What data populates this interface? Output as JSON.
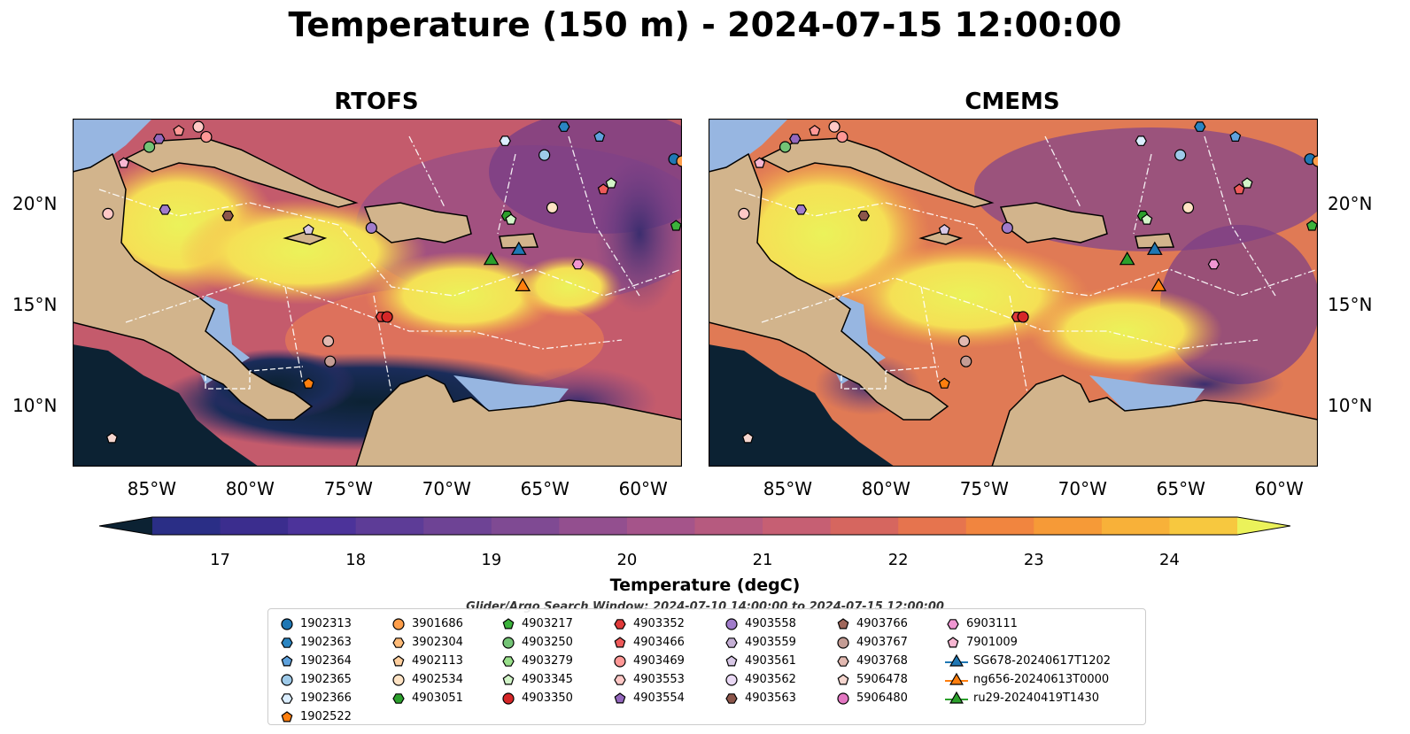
{
  "title": "Temperature (150 m) - 2024-07-15 12:00:00",
  "panels": [
    {
      "title": "RTOFS"
    },
    {
      "title": "CMEMS"
    }
  ],
  "map_axes": {
    "lon_labels": [
      "85°W",
      "80°W",
      "75°W",
      "70°W",
      "65°W",
      "60°W"
    ],
    "lat_labels": [
      "20°N",
      "15°N",
      "10°N"
    ],
    "lon_range": [
      -89,
      -58
    ],
    "lat_range": [
      7,
      24.2
    ]
  },
  "colorbar": {
    "label": "Temperature (degC)",
    "ticks": [
      "17",
      "18",
      "19",
      "20",
      "21",
      "22",
      "23",
      "24"
    ],
    "range": [
      16.5,
      24.5
    ],
    "extend": "both"
  },
  "colors": {
    "land": "#d2b48c",
    "shelf": "#97b6e1",
    "cold": "#0c2233",
    "warm": "#ebf25a",
    "outline": "#000000"
  },
  "search_window": "Glider/Argo Search Window: 2024-07-10 14:00:00 to 2024-07-15 12:00:00",
  "legend": {
    "columns": [
      [
        {
          "label": "1902313",
          "shape": "circle",
          "color": "#1f77b4"
        },
        {
          "label": "1902363",
          "shape": "hexagon",
          "color": "#2a85c2"
        },
        {
          "label": "1902364",
          "shape": "pentagon",
          "color": "#5fa2dd"
        },
        {
          "label": "1902365",
          "shape": "circle",
          "color": "#9ecae9"
        },
        {
          "label": "1902366",
          "shape": "hexagon",
          "color": "#dbeeff"
        },
        {
          "label": "1902522",
          "shape": "pentagon",
          "color": "#ff7f0e"
        }
      ],
      [
        {
          "label": "3901686",
          "shape": "circle",
          "color": "#ff9e4a"
        },
        {
          "label": "3902304",
          "shape": "hexagon",
          "color": "#ffbb78"
        },
        {
          "label": "4902113",
          "shape": "pentagon",
          "color": "#ffcf9e"
        },
        {
          "label": "4902534",
          "shape": "circle",
          "color": "#ffe3c4"
        },
        {
          "label": "4903051",
          "shape": "hexagon",
          "color": "#2ca02c"
        }
      ],
      [
        {
          "label": "4903217",
          "shape": "pentagon",
          "color": "#3cb33c"
        },
        {
          "label": "4903250",
          "shape": "circle",
          "color": "#74c476"
        },
        {
          "label": "4903279",
          "shape": "hexagon",
          "color": "#98df8a"
        },
        {
          "label": "4903345",
          "shape": "pentagon",
          "color": "#d2f5c8"
        },
        {
          "label": "4903350",
          "shape": "circle",
          "color": "#d62728"
        }
      ],
      [
        {
          "label": "4903352",
          "shape": "hexagon",
          "color": "#e03a3a"
        },
        {
          "label": "4903466",
          "shape": "pentagon",
          "color": "#ef5a5a"
        },
        {
          "label": "4903469",
          "shape": "circle",
          "color": "#ff9896"
        },
        {
          "label": "4903553",
          "shape": "hexagon",
          "color": "#ffc8c6"
        },
        {
          "label": "4903554",
          "shape": "pentagon",
          "color": "#9467bd"
        }
      ],
      [
        {
          "label": "4903558",
          "shape": "circle",
          "color": "#a17ccb"
        },
        {
          "label": "4903559",
          "shape": "hexagon",
          "color": "#c5b0d5"
        },
        {
          "label": "4903561",
          "shape": "pentagon",
          "color": "#d8c8e6"
        },
        {
          "label": "4903562",
          "shape": "circle",
          "color": "#ead9f5"
        },
        {
          "label": "4903563",
          "shape": "hexagon",
          "color": "#8c564b"
        }
      ],
      [
        {
          "label": "4903766",
          "shape": "pentagon",
          "color": "#a0675b"
        },
        {
          "label": "4903767",
          "shape": "circle",
          "color": "#c49c94"
        },
        {
          "label": "4903768",
          "shape": "hexagon",
          "color": "#e2b9b1"
        },
        {
          "label": "5906478",
          "shape": "pentagon",
          "color": "#f5d6cf"
        },
        {
          "label": "5906480",
          "shape": "circle",
          "color": "#e377c2"
        }
      ],
      [
        {
          "label": "6903111",
          "shape": "hexagon",
          "color": "#f096d2"
        },
        {
          "label": "7901009",
          "shape": "pentagon",
          "color": "#f7b6d2"
        },
        {
          "label": "SG678-20240617T1202",
          "shape": "triangle-line",
          "color": "#1f77b4"
        },
        {
          "label": "ng656-20240613T0000",
          "shape": "triangle-line",
          "color": "#ff7f0e"
        },
        {
          "label": "ru29-20240419T1430",
          "shape": "triangle-line",
          "color": "#2ca02c"
        }
      ]
    ]
  },
  "markers": [
    {
      "lon": -84.6,
      "lat": 23.2,
      "shape": "hexagon",
      "color": "#9467bd"
    },
    {
      "lon": -83.6,
      "lat": 23.6,
      "shape": "pentagon",
      "color": "#ff9896"
    },
    {
      "lon": -82.6,
      "lat": 23.8,
      "shape": "circle",
      "color": "#ffc8c6"
    },
    {
      "lon": -82.2,
      "lat": 23.3,
      "shape": "circle",
      "color": "#ff9896"
    },
    {
      "lon": -85.1,
      "lat": 22.8,
      "shape": "circle",
      "color": "#74c476"
    },
    {
      "lon": -86.4,
      "lat": 22.0,
      "shape": "pentagon",
      "color": "#f7b6d2"
    },
    {
      "lon": -87.2,
      "lat": 19.5,
      "shape": "circle",
      "color": "#ffc8c6"
    },
    {
      "lon": -84.3,
      "lat": 19.7,
      "shape": "hexagon",
      "color": "#a17ccb"
    },
    {
      "lon": -81.1,
      "lat": 19.4,
      "shape": "hexagon",
      "color": "#8c564b"
    },
    {
      "lon": -77.0,
      "lat": 18.7,
      "shape": "pentagon",
      "color": "#d8c8e6"
    },
    {
      "lon": -73.8,
      "lat": 18.8,
      "shape": "circle",
      "color": "#a17ccb"
    },
    {
      "lon": -66.9,
      "lat": 19.4,
      "shape": "hexagon",
      "color": "#2ca02c"
    },
    {
      "lon": -66.7,
      "lat": 19.2,
      "shape": "pentagon",
      "color": "#d2f5c8"
    },
    {
      "lon": -64.6,
      "lat": 19.8,
      "shape": "circle",
      "color": "#ffe3c4"
    },
    {
      "lon": -67.0,
      "lat": 23.1,
      "shape": "hexagon",
      "color": "#dbeeff"
    },
    {
      "lon": -65.0,
      "lat": 22.4,
      "shape": "circle",
      "color": "#9ecae9"
    },
    {
      "lon": -64.0,
      "lat": 23.8,
      "shape": "hexagon",
      "color": "#2a85c2"
    },
    {
      "lon": -62.2,
      "lat": 23.3,
      "shape": "pentagon",
      "color": "#5fa2dd"
    },
    {
      "lon": -58.4,
      "lat": 22.2,
      "shape": "circle",
      "color": "#1f77b4"
    },
    {
      "lon": -58.0,
      "lat": 22.1,
      "shape": "circle",
      "color": "#ff9e4a"
    },
    {
      "lon": -62.0,
      "lat": 20.7,
      "shape": "pentagon",
      "color": "#ef5a5a"
    },
    {
      "lon": -61.6,
      "lat": 21.0,
      "shape": "pentagon",
      "color": "#d2f5c8"
    },
    {
      "lon": -58.3,
      "lat": 18.9,
      "shape": "pentagon",
      "color": "#3cb33c"
    },
    {
      "lon": -63.3,
      "lat": 17.0,
      "shape": "hexagon",
      "color": "#f096d2"
    },
    {
      "lon": -73.3,
      "lat": 14.4,
      "shape": "hexagon",
      "color": "#e03a3a"
    },
    {
      "lon": -73.0,
      "lat": 14.4,
      "shape": "circle",
      "color": "#d62728"
    },
    {
      "lon": -76.0,
      "lat": 13.2,
      "shape": "circle",
      "color": "#e2b9b1"
    },
    {
      "lon": -75.9,
      "lat": 12.2,
      "shape": "circle",
      "color": "#c49c94"
    },
    {
      "lon": -77.0,
      "lat": 11.1,
      "shape": "pentagon",
      "color": "#ff7f0e"
    },
    {
      "lon": -87.0,
      "lat": 8.4,
      "shape": "pentagon",
      "color": "#f5d6cf"
    }
  ],
  "gliders": [
    {
      "label": "ru29-20240419T1430",
      "lon": -67.7,
      "lat": 17.1,
      "color": "#2ca02c"
    },
    {
      "label": "SG678-20240617T1202",
      "lon": -66.3,
      "lat": 17.6,
      "color": "#1f77b4"
    },
    {
      "label": "ng656-20240613T0000",
      "lon": -66.1,
      "lat": 15.8,
      "color": "#ff7f0e"
    }
  ]
}
